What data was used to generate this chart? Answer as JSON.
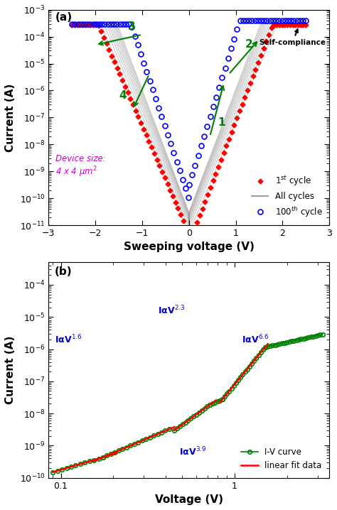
{
  "panel_a": {
    "xlabel": "Sweeping voltage (V)",
    "ylabel": "Current (A)",
    "label": "(a)",
    "xlim": [
      -3,
      3
    ],
    "ylim": [
      1e-11,
      0.001
    ],
    "legend": {
      "cycle1": "1$^{st}$ cycle",
      "all": "All cycles",
      "cycle100": "100$^{th}$ cycle"
    },
    "colors": {
      "cycle1": "#FF0000",
      "all": "#888888",
      "cycle100": "#0000FF"
    },
    "device_text": "Device size:\n4 x 4 μm$^2$",
    "device_color": "#CC00CC",
    "arrow_color": "#008000",
    "self_compliance_text": "Self-compliance"
  },
  "panel_b": {
    "xlabel": "Voltage (V)",
    "ylabel": "Current (A)",
    "label": "(b)",
    "xlim": [
      0.085,
      3.5
    ],
    "ylim": [
      1e-10,
      0.0005
    ],
    "fit_labels": [
      "IαV$^{1.6}$",
      "IαV$^{2.3}$",
      "IαV$^{3.9}$",
      "IαV$^{6.6}$"
    ],
    "fit_color": "#FF0000",
    "iv_color": "#008000",
    "legend_iv": "I-V curve",
    "legend_fit": "linear fit data"
  }
}
